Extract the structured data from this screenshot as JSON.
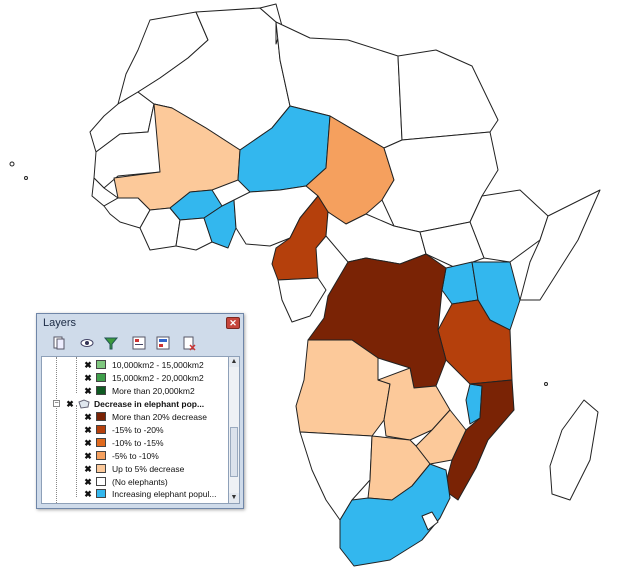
{
  "window": {
    "title": "Layers"
  },
  "toolbar": [
    "add-layer-icon",
    "visibility-icon",
    "filter-icon",
    "expand-all-icon",
    "collapse-all-icon",
    "remove-layer-icon"
  ],
  "layers": {
    "area_items": [
      {
        "label": "10,000km2 - 15,000km2",
        "color": "#7fc77f"
      },
      {
        "label": "15,000km2 - 20,000km2",
        "color": "#3e9f4a"
      },
      {
        "label": "More than 20,000km2",
        "color": "#0f5a22"
      }
    ],
    "group_label": "Decrease in elephant pop...",
    "items": [
      {
        "label": "More than 20% decrease",
        "color": "#7a2305"
      },
      {
        "label": "-15% to -20%",
        "color": "#b5400c"
      },
      {
        "label": "-10% to -15%",
        "color": "#e06a1e"
      },
      {
        "label": "-5% to -10%",
        "color": "#f5a05e"
      },
      {
        "label": "Up to 5% decrease",
        "color": "#fcc99a"
      },
      {
        "label": "(No elephants)",
        "color": "#ffffff"
      },
      {
        "label": "Increasing elephant popul...",
        "color": "#33b7ee"
      }
    ]
  },
  "map_colors": {
    "none": "#ffffff",
    "more_20": "#7a2305",
    "m15_20": "#b5400c",
    "m10_15": "#e06a1e",
    "m5_10": "#f5a05e",
    "up_to_5": "#fcc99a",
    "increasing": "#33b7ee"
  }
}
